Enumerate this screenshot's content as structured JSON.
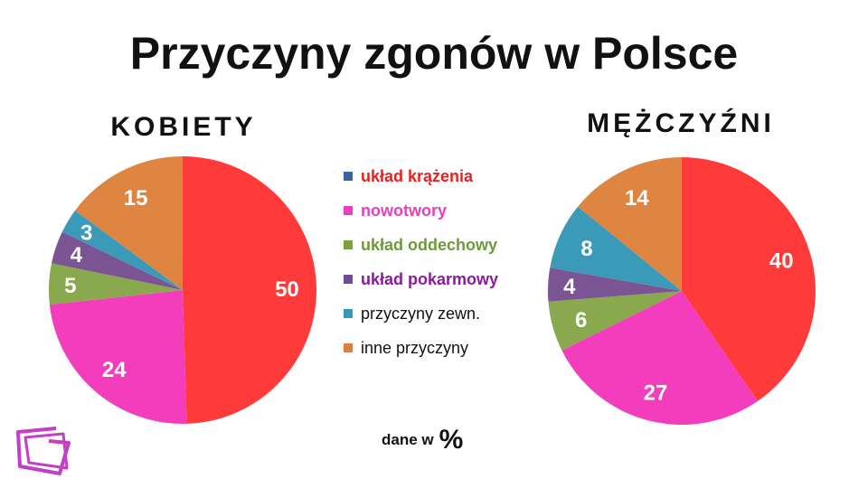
{
  "title": "Przyczyny zgonów w Polsce",
  "note": {
    "text": "dane w",
    "unit": "%"
  },
  "legend": [
    {
      "label": "układ krążenia",
      "color": "#3a63a8",
      "text_color": "#ee1c1c",
      "bold": true
    },
    {
      "label": "nowotwory",
      "color": "#e83fbf",
      "text_color": "#e83fbf",
      "bold": true
    },
    {
      "label": "układ oddechowy",
      "color": "#7aa33d",
      "text_color": "#6f9a3a",
      "bold": true
    },
    {
      "label": "układ pokarmowy",
      "color": "#6e4b94",
      "text_color": "#8b1a9e",
      "bold": true
    },
    {
      "label": "przyczyny zewn.",
      "color": "#3797b8",
      "text_color": "#111111",
      "bold": false
    },
    {
      "label": "inne przyczyny",
      "color": "#e07f3a",
      "text_color": "#111111",
      "bold": false
    }
  ],
  "chart_data": [
    {
      "type": "pie",
      "title": "KOBIETY",
      "categories": [
        "układ krążenia",
        "nowotwory",
        "układ oddechowy",
        "układ pokarmowy",
        "przyczyny zewn.",
        "inne przyczyny"
      ],
      "values": [
        50,
        24,
        5,
        4,
        3,
        15
      ],
      "colors": [
        "#ff3a3a",
        "#f43dbd",
        "#8aa84d",
        "#7b5494",
        "#3c9ab9",
        "#de8542"
      ]
    },
    {
      "type": "pie",
      "title": "MĘŻCZYŹNI",
      "categories": [
        "układ krążenia",
        "nowotwory",
        "układ oddechowy",
        "układ pokarmowy",
        "przyczyny zewn.",
        "inne przyczyny"
      ],
      "values": [
        40,
        27,
        6,
        4,
        8,
        14
      ],
      "colors": [
        "#ff3a3a",
        "#f43dbd",
        "#8aa84d",
        "#7b5494",
        "#3c9ab9",
        "#de8542"
      ]
    }
  ]
}
